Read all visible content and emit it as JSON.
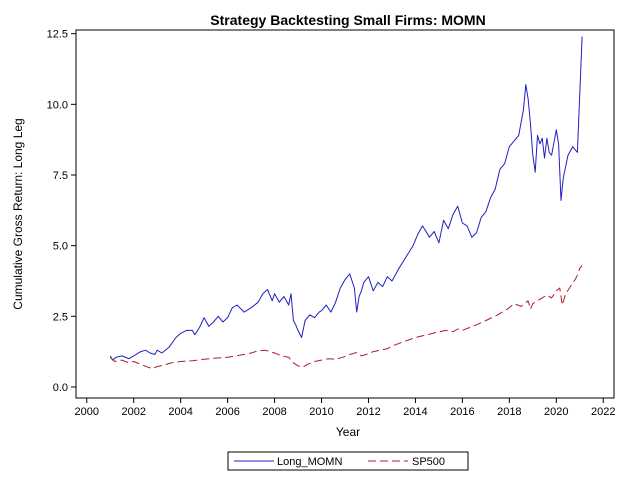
{
  "chart_data": {
    "type": "line",
    "title": "Strategy Backtesting Small Firms: MOMN",
    "xlabel": "Year",
    "ylabel": "Cumulative Gross Return: Long Leg",
    "xlim": [
      2000,
      2022
    ],
    "ylim": [
      0,
      12.5
    ],
    "xticks": [
      2000,
      2002,
      2004,
      2006,
      2008,
      2010,
      2012,
      2014,
      2016,
      2018,
      2020,
      2022
    ],
    "yticks": [
      0.0,
      2.5,
      5.0,
      7.5,
      10.0,
      12.5
    ],
    "ytick_labels": [
      "0.0",
      "2.5",
      "5.0",
      "7.5",
      "10.0",
      "12.5"
    ],
    "grid": false,
    "legend_position": "bottom-center",
    "series": [
      {
        "name": "Long_MOMN",
        "color": "#2020c0",
        "dash": "solid",
        "x": [
          2001.0,
          2001.1,
          2001.25,
          2001.5,
          2001.8,
          2002.0,
          2002.3,
          2002.5,
          2002.7,
          2002.9,
          2003.0,
          2003.2,
          2003.5,
          2003.8,
          2004.0,
          2004.25,
          2004.5,
          2004.6,
          2004.8,
          2005.0,
          2005.2,
          2005.4,
          2005.6,
          2005.8,
          2006.0,
          2006.2,
          2006.4,
          2006.7,
          2007.0,
          2007.3,
          2007.5,
          2007.7,
          2007.9,
          2008.0,
          2008.2,
          2008.4,
          2008.6,
          2008.7,
          2008.8,
          2008.9,
          2009.0,
          2009.15,
          2009.3,
          2009.5,
          2009.7,
          2009.9,
          2010.0,
          2010.2,
          2010.4,
          2010.6,
          2010.8,
          2011.0,
          2011.2,
          2011.4,
          2011.5,
          2011.6,
          2011.7,
          2011.8,
          2012.0,
          2012.2,
          2012.4,
          2012.6,
          2012.8,
          2013.0,
          2013.3,
          2013.6,
          2013.9,
          2014.1,
          2014.3,
          2014.6,
          2014.8,
          2015.0,
          2015.2,
          2015.4,
          2015.6,
          2015.8,
          2016.0,
          2016.2,
          2016.4,
          2016.6,
          2016.8,
          2017.0,
          2017.2,
          2017.4,
          2017.6,
          2017.8,
          2018.0,
          2018.2,
          2018.4,
          2018.6,
          2018.7,
          2018.8,
          2018.9,
          2019.0,
          2019.1,
          2019.2,
          2019.3,
          2019.4,
          2019.5,
          2019.6,
          2019.7,
          2019.8,
          2020.0,
          2020.1,
          2020.2,
          2020.3,
          2020.5,
          2020.7,
          2020.9,
          2021.1
        ],
        "values": [
          1.1,
          0.95,
          1.05,
          1.1,
          1.0,
          1.1,
          1.25,
          1.3,
          1.2,
          1.15,
          1.3,
          1.2,
          1.4,
          1.75,
          1.9,
          2.0,
          2.0,
          1.85,
          2.1,
          2.45,
          2.15,
          2.3,
          2.5,
          2.3,
          2.45,
          2.8,
          2.9,
          2.65,
          2.8,
          3.0,
          3.3,
          3.45,
          3.05,
          3.3,
          3.0,
          3.2,
          2.9,
          3.3,
          2.35,
          2.2,
          2.0,
          1.75,
          2.35,
          2.55,
          2.45,
          2.65,
          2.7,
          2.9,
          2.65,
          3.0,
          3.5,
          3.8,
          4.0,
          3.5,
          2.65,
          3.2,
          3.4,
          3.7,
          3.9,
          3.4,
          3.7,
          3.55,
          3.9,
          3.75,
          4.2,
          4.6,
          5.0,
          5.4,
          5.7,
          5.3,
          5.5,
          5.1,
          5.9,
          5.6,
          6.1,
          6.4,
          5.8,
          5.7,
          5.3,
          5.45,
          6.0,
          6.2,
          6.7,
          7.0,
          7.7,
          7.9,
          8.5,
          8.7,
          8.9,
          9.8,
          10.7,
          10.2,
          9.3,
          8.2,
          7.6,
          8.9,
          8.6,
          8.8,
          8.1,
          8.8,
          8.3,
          8.2,
          9.1,
          8.6,
          6.6,
          7.4,
          8.2,
          8.5,
          8.3,
          12.4
        ]
      },
      {
        "name": "SP500",
        "color": "#b01c2e",
        "dash": "dashed",
        "x": [
          2001.0,
          2001.2,
          2001.5,
          2001.8,
          2002.0,
          2002.3,
          2002.6,
          2002.8,
          2003.0,
          2003.3,
          2003.6,
          2004.0,
          2004.5,
          2005.0,
          2005.5,
          2006.0,
          2006.5,
          2007.0,
          2007.3,
          2007.6,
          2007.8,
          2008.0,
          2008.3,
          2008.6,
          2008.8,
          2009.0,
          2009.2,
          2009.4,
          2009.7,
          2010.0,
          2010.3,
          2010.6,
          2010.9,
          2011.2,
          2011.5,
          2011.7,
          2011.9,
          2012.2,
          2012.5,
          2012.8,
          2013.0,
          2013.5,
          2014.0,
          2014.5,
          2015.0,
          2015.3,
          2015.6,
          2015.8,
          2016.0,
          2016.3,
          2016.6,
          2017.0,
          2017.5,
          2018.0,
          2018.2,
          2018.5,
          2018.8,
          2018.9,
          2019.0,
          2019.3,
          2019.6,
          2019.8,
          2020.0,
          2020.15,
          2020.25,
          2020.4,
          2020.6,
          2020.8,
          2020.9,
          2021.0,
          2021.1
        ],
        "values": [
          1.05,
          0.9,
          0.95,
          0.85,
          0.9,
          0.8,
          0.7,
          0.65,
          0.72,
          0.78,
          0.85,
          0.9,
          0.93,
          0.98,
          1.02,
          1.05,
          1.12,
          1.2,
          1.28,
          1.3,
          1.25,
          1.2,
          1.1,
          1.05,
          0.85,
          0.75,
          0.7,
          0.8,
          0.9,
          0.95,
          1.0,
          0.98,
          1.05,
          1.15,
          1.22,
          1.1,
          1.15,
          1.25,
          1.3,
          1.35,
          1.45,
          1.6,
          1.75,
          1.85,
          1.95,
          2.0,
          1.95,
          2.05,
          2.0,
          2.1,
          2.2,
          2.35,
          2.55,
          2.8,
          2.95,
          2.85,
          3.05,
          2.75,
          2.95,
          3.1,
          3.25,
          3.15,
          3.4,
          3.5,
          2.9,
          3.3,
          3.55,
          3.8,
          3.95,
          4.2,
          4.3
        ]
      }
    ]
  }
}
